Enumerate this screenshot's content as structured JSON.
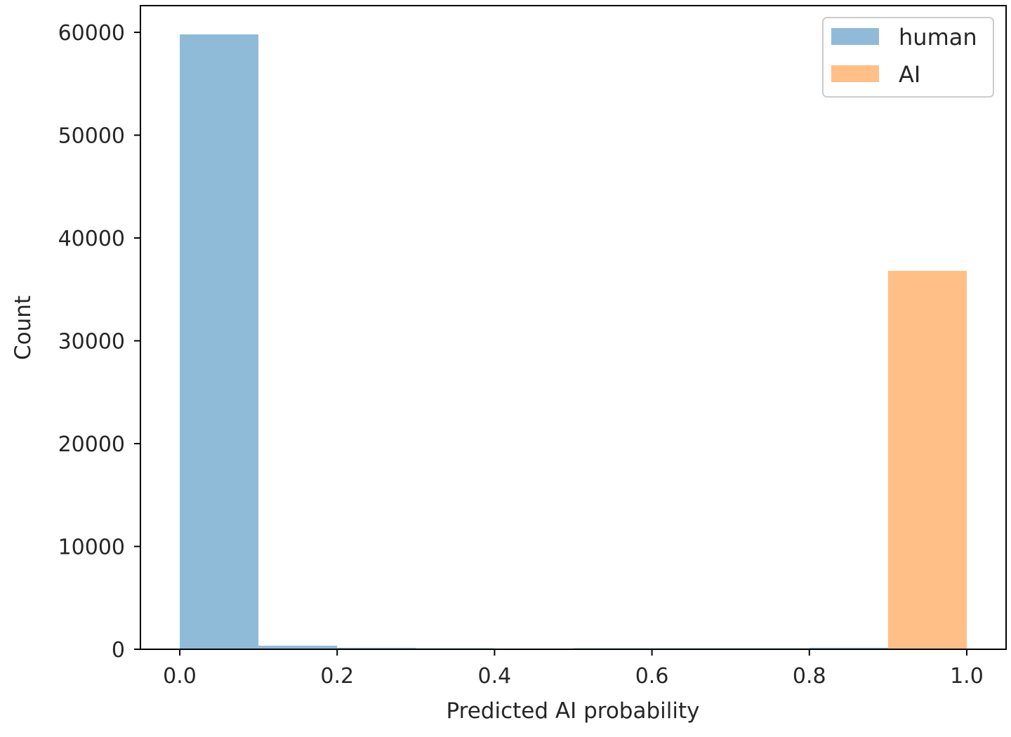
{
  "chart_data": {
    "type": "bar",
    "subtype": "histogram-overlay",
    "title": "",
    "xlabel": "Predicted AI probability",
    "ylabel": "Count",
    "xlim": [
      -0.05,
      1.05
    ],
    "ylim": [
      0,
      62600
    ],
    "grid": false,
    "legend_position": "top-right",
    "xticks": [
      0.0,
      0.2,
      0.4,
      0.6,
      0.8,
      1.0
    ],
    "xtick_labels": [
      "0.0",
      "0.2",
      "0.4",
      "0.6",
      "0.8",
      "1.0"
    ],
    "yticks": [
      0,
      10000,
      20000,
      30000,
      40000,
      50000,
      60000
    ],
    "ytick_labels": [
      "0",
      "10000",
      "20000",
      "30000",
      "40000",
      "50000",
      "60000"
    ],
    "bin_edges": [
      0.0,
      0.1,
      0.2,
      0.3,
      0.4,
      0.5,
      0.6,
      0.7,
      0.8,
      0.9,
      1.0
    ],
    "series": [
      {
        "name": "human",
        "color": "#1f77b4",
        "opacity": 0.5,
        "values": [
          59800,
          350,
          150,
          100,
          0,
          100,
          100,
          100,
          150,
          0
        ]
      },
      {
        "name": "AI",
        "color": "#ff7f0e",
        "opacity": 0.5,
        "values": [
          0,
          0,
          0,
          0,
          0,
          0,
          0,
          0,
          0,
          36800
        ]
      }
    ]
  }
}
